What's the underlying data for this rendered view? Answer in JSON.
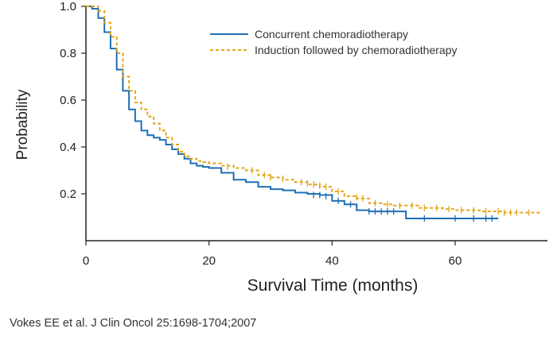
{
  "chart_data": {
    "type": "line",
    "step": true,
    "xlabel": "Survival Time (months)",
    "ylabel": "Probability",
    "xlim": [
      0,
      75
    ],
    "ylim": [
      0,
      1.0
    ],
    "x_ticks": [
      0,
      20,
      40,
      60
    ],
    "y_ticks": [
      0.2,
      0.4,
      0.6,
      0.8,
      1.0
    ],
    "grid": false,
    "legend_position": "top-right",
    "series": [
      {
        "name": "Concurrent chemoradiotherapy",
        "color": "#1f6fb5",
        "line_style": "solid",
        "x": [
          0,
          1,
          2,
          3,
          4,
          5,
          6,
          7,
          8,
          9,
          10,
          11,
          12,
          13,
          14,
          15,
          16,
          17,
          18,
          19,
          20,
          22,
          24,
          26,
          28,
          30,
          32,
          34,
          36,
          38,
          40,
          42,
          44,
          46,
          48,
          50,
          52,
          54,
          56,
          58,
          60,
          62,
          64,
          67
        ],
        "y": [
          1.0,
          0.99,
          0.95,
          0.89,
          0.82,
          0.73,
          0.64,
          0.56,
          0.51,
          0.47,
          0.45,
          0.44,
          0.43,
          0.41,
          0.39,
          0.37,
          0.35,
          0.33,
          0.32,
          0.315,
          0.31,
          0.29,
          0.26,
          0.25,
          0.23,
          0.22,
          0.215,
          0.205,
          0.2,
          0.195,
          0.17,
          0.155,
          0.13,
          0.125,
          0.125,
          0.125,
          0.095,
          0.095,
          0.095,
          0.095,
          0.095,
          0.095,
          0.095,
          0.095
        ],
        "censor_x": [
          37,
          38,
          39,
          40,
          41,
          43,
          46,
          47,
          48,
          49,
          50,
          55,
          60,
          63,
          65,
          66
        ],
        "censor_y": [
          0.195,
          0.195,
          0.19,
          0.185,
          0.17,
          0.155,
          0.125,
          0.125,
          0.125,
          0.125,
          0.125,
          0.095,
          0.095,
          0.095,
          0.095,
          0.095
        ]
      },
      {
        "name": "Induction followed by chemoradiotherapy",
        "color": "#e3a614",
        "line_style": "dashed",
        "x": [
          0,
          1,
          2,
          3,
          4,
          5,
          6,
          7,
          8,
          9,
          10,
          11,
          12,
          13,
          14,
          15,
          16,
          17,
          18,
          19,
          20,
          22,
          24,
          26,
          28,
          30,
          32,
          34,
          36,
          38,
          40,
          42,
          44,
          46,
          48,
          50,
          52,
          54,
          56,
          58,
          60,
          62,
          64,
          66,
          68,
          70,
          72,
          74
        ],
        "y": [
          1.0,
          1.0,
          0.98,
          0.93,
          0.87,
          0.8,
          0.7,
          0.64,
          0.59,
          0.56,
          0.53,
          0.5,
          0.47,
          0.44,
          0.41,
          0.38,
          0.36,
          0.35,
          0.34,
          0.335,
          0.33,
          0.32,
          0.31,
          0.3,
          0.28,
          0.27,
          0.26,
          0.25,
          0.24,
          0.23,
          0.21,
          0.19,
          0.18,
          0.16,
          0.155,
          0.15,
          0.15,
          0.14,
          0.14,
          0.135,
          0.13,
          0.13,
          0.125,
          0.125,
          0.12,
          0.12,
          0.12,
          0.12
        ],
        "censor_x": [
          23,
          27,
          29,
          30,
          32,
          35,
          36,
          37,
          38,
          39,
          41,
          44,
          45,
          47,
          49,
          51,
          53,
          55,
          57,
          59,
          61,
          63,
          65,
          67,
          68,
          69,
          70,
          72
        ],
        "censor_y": [
          0.315,
          0.3,
          0.28,
          0.27,
          0.265,
          0.25,
          0.245,
          0.24,
          0.235,
          0.23,
          0.21,
          0.185,
          0.18,
          0.16,
          0.155,
          0.15,
          0.15,
          0.14,
          0.14,
          0.135,
          0.13,
          0.13,
          0.125,
          0.125,
          0.12,
          0.12,
          0.12,
          0.12
        ]
      }
    ]
  },
  "citation": "Vokes EE et al. J Clin Oncol 25:1698-1704;2007"
}
